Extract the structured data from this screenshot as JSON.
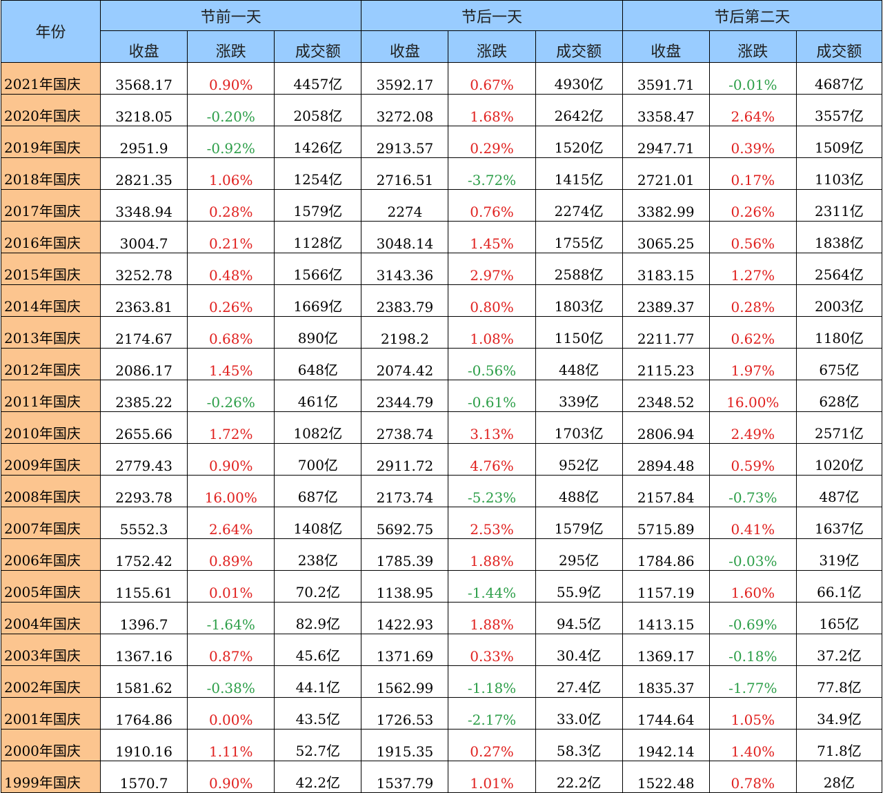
{
  "header": {
    "year_label": "年份",
    "groups": [
      "节前一天",
      "节后一天",
      "节后第二天"
    ],
    "columns": [
      "收盘",
      "涨跌",
      "成交额"
    ]
  },
  "colors": {
    "header_bg": "#99ccff",
    "year_bg": "#fcc58f",
    "positive": "#e0201e",
    "negative": "#2c9e48"
  },
  "rows": [
    {
      "year": "2021年国庆",
      "cells": [
        "3568.17",
        "0.90%",
        "4457亿",
        "3592.17",
        "0.67%",
        "4930亿",
        "3591.71",
        "-0.01%",
        "4687亿"
      ]
    },
    {
      "year": "2020年国庆",
      "cells": [
        "3218.05",
        "-0.20%",
        "2058亿",
        "3272.08",
        "1.68%",
        "2642亿",
        "3358.47",
        "2.64%",
        "3557亿"
      ]
    },
    {
      "year": "2019年国庆",
      "cells": [
        "2951.9",
        "-0.92%",
        "1426亿",
        "2913.57",
        "0.29%",
        "1520亿",
        "2947.71",
        "0.39%",
        "1509亿"
      ]
    },
    {
      "year": "2018年国庆",
      "cells": [
        "2821.35",
        "1.06%",
        "1254亿",
        "2716.51",
        "-3.72%",
        "1415亿",
        "2721.01",
        "0.17%",
        "1103亿"
      ]
    },
    {
      "year": "2017年国庆",
      "cells": [
        "3348.94",
        "0.28%",
        "1579亿",
        "2274",
        "0.76%",
        "2274亿",
        "3382.99",
        "0.26%",
        "2311亿"
      ]
    },
    {
      "year": "2016年国庆",
      "cells": [
        "3004.7",
        "0.21%",
        "1128亿",
        "3048.14",
        "1.45%",
        "1755亿",
        "3065.25",
        "0.56%",
        "1838亿"
      ]
    },
    {
      "year": "2015年国庆",
      "cells": [
        "3252.78",
        "0.48%",
        "1566亿",
        "3143.36",
        "2.97%",
        "2588亿",
        "3183.15",
        "1.27%",
        "2564亿"
      ]
    },
    {
      "year": "2014年国庆",
      "cells": [
        "2363.81",
        "0.26%",
        "1669亿",
        "2383.79",
        "0.80%",
        "1803亿",
        "2389.37",
        "0.28%",
        "2003亿"
      ]
    },
    {
      "year": "2013年国庆",
      "cells": [
        "2174.67",
        "0.68%",
        "890亿",
        "2198.2",
        "1.08%",
        "1150亿",
        "2211.77",
        "0.62%",
        "1180亿"
      ]
    },
    {
      "year": "2012年国庆",
      "cells": [
        "2086.17",
        "1.45%",
        "648亿",
        "2074.42",
        "-0.56%",
        "448亿",
        "2115.23",
        "1.97%",
        "675亿"
      ]
    },
    {
      "year": "2011年国庆",
      "cells": [
        "2385.22",
        "-0.26%",
        "461亿",
        "2344.79",
        "-0.61%",
        "339亿",
        "2348.52",
        "16.00%",
        "628亿"
      ]
    },
    {
      "year": "2010年国庆",
      "cells": [
        "2655.66",
        "1.72%",
        "1082亿",
        "2738.74",
        "3.13%",
        "1703亿",
        "2806.94",
        "2.49%",
        "2571亿"
      ]
    },
    {
      "year": "2009年国庆",
      "cells": [
        "2779.43",
        "0.90%",
        "700亿",
        "2911.72",
        "4.76%",
        "952亿",
        "2894.48",
        "0.59%",
        "1020亿"
      ]
    },
    {
      "year": "2008年国庆",
      "cells": [
        "2293.78",
        "16.00%",
        "687亿",
        "2173.74",
        "-5.23%",
        "488亿",
        "2157.84",
        "-0.73%",
        "487亿"
      ]
    },
    {
      "year": "2007年国庆",
      "cells": [
        "5552.3",
        "2.64%",
        "1408亿",
        "5692.75",
        "2.53%",
        "1579亿",
        "5715.89",
        "0.41%",
        "1637亿"
      ]
    },
    {
      "year": "2006年国庆",
      "cells": [
        "1752.42",
        "0.89%",
        "238亿",
        "1785.39",
        "1.88%",
        "295亿",
        "1784.86",
        "-0.03%",
        "319亿"
      ]
    },
    {
      "year": "2005年国庆",
      "cells": [
        "1155.61",
        "0.01%",
        "70.2亿",
        "1138.95",
        "-1.44%",
        "55.9亿",
        "1157.19",
        "1.60%",
        "66.1亿"
      ]
    },
    {
      "year": "2004年国庆",
      "cells": [
        "1396.7",
        "-1.64%",
        "82.9亿",
        "1422.93",
        "1.88%",
        "94.5亿",
        "1413.15",
        "-0.69%",
        "165亿"
      ]
    },
    {
      "year": "2003年国庆",
      "cells": [
        "1367.16",
        "0.87%",
        "45.6亿",
        "1371.69",
        "0.33%",
        "30.4亿",
        "1369.17",
        "-0.18%",
        "37.2亿"
      ]
    },
    {
      "year": "2002年国庆",
      "cells": [
        "1581.62",
        "-0.38%",
        "44.1亿",
        "1562.99",
        "-1.18%",
        "27.4亿",
        "1835.37",
        "-1.77%",
        "77.8亿"
      ]
    },
    {
      "year": "2001年国庆",
      "cells": [
        "1764.86",
        "0.00%",
        "43.5亿",
        "1726.53",
        "-2.17%",
        "33.0亿",
        "1744.64",
        "1.05%",
        "34.9亿"
      ]
    },
    {
      "year": "2000年国庆",
      "cells": [
        "1910.16",
        "1.11%",
        "52.7亿",
        "1915.35",
        "0.27%",
        "58.3亿",
        "1942.14",
        "1.40%",
        "71.8亿"
      ]
    },
    {
      "year": "1999年国庆",
      "cells": [
        "1570.7",
        "0.90%",
        "42.2亿",
        "1537.79",
        "1.01%",
        "22.2亿",
        "1522.48",
        "0.78%",
        "28亿"
      ]
    }
  ]
}
